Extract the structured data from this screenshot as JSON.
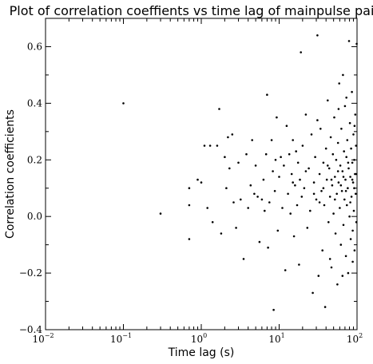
{
  "chart_data": {
    "type": "scatter",
    "title": "Plot of correlation coeffients vs time lag of mainpulse pairs.",
    "xlabel": "Time lag (s)",
    "ylabel": "Correlation coefficients",
    "xscale": "log",
    "xlim": [
      0.01,
      100
    ],
    "ylim": [
      -0.4,
      0.7
    ],
    "grid": false,
    "marker_color": "#000000",
    "x_ticks": [
      {
        "value": 0.01,
        "base": "10",
        "exp": "−2"
      },
      {
        "value": 0.1,
        "base": "10",
        "exp": "−1"
      },
      {
        "value": 1,
        "base": "10",
        "exp": "0"
      },
      {
        "value": 10,
        "base": "10",
        "exp": "1"
      },
      {
        "value": 100,
        "base": "10",
        "exp": "2"
      }
    ],
    "y_ticks": [
      {
        "value": -0.4,
        "label": "−0.4"
      },
      {
        "value": -0.2,
        "label": "−0.2"
      },
      {
        "value": 0.0,
        "label": "0.0"
      },
      {
        "value": 0.2,
        "label": "0.2"
      },
      {
        "value": 0.4,
        "label": "0.4"
      },
      {
        "value": 0.6,
        "label": "0.6"
      }
    ],
    "points": [
      [
        0.1,
        0.4
      ],
      [
        0.3,
        0.01
      ],
      [
        0.7,
        0.1
      ],
      [
        0.7,
        0.04
      ],
      [
        0.7,
        -0.08
      ],
      [
        0.9,
        0.13
      ],
      [
        1.0,
        0.12
      ],
      [
        1.1,
        0.25
      ],
      [
        1.2,
        0.03
      ],
      [
        1.3,
        0.25
      ],
      [
        1.4,
        -0.02
      ],
      [
        1.6,
        0.25
      ],
      [
        1.7,
        0.38
      ],
      [
        1.8,
        -0.06
      ],
      [
        2.0,
        0.21
      ],
      [
        2.1,
        0.1
      ],
      [
        2.2,
        0.28
      ],
      [
        2.3,
        0.17
      ],
      [
        2.5,
        0.29
      ],
      [
        2.6,
        0.05
      ],
      [
        2.8,
        -0.04
      ],
      [
        3.0,
        0.19
      ],
      [
        3.2,
        0.06
      ],
      [
        3.5,
        -0.15
      ],
      [
        3.8,
        0.22
      ],
      [
        4.0,
        0.03
      ],
      [
        4.3,
        0.11
      ],
      [
        4.5,
        0.27
      ],
      [
        4.8,
        0.08
      ],
      [
        5.0,
        0.18
      ],
      [
        5.3,
        0.07
      ],
      [
        5.6,
        -0.09
      ],
      [
        6.0,
        0.06
      ],
      [
        6.3,
        0.13
      ],
      [
        6.5,
        0.02
      ],
      [
        6.8,
        0.22
      ],
      [
        7.0,
        0.43
      ],
      [
        7.2,
        -0.11
      ],
      [
        7.5,
        0.05
      ],
      [
        8.0,
        0.27
      ],
      [
        8.3,
        0.16
      ],
      [
        8.5,
        -0.33
      ],
      [
        8.8,
        0.09
      ],
      [
        9.0,
        0.2
      ],
      [
        9.3,
        0.35
      ],
      [
        9.6,
        -0.05
      ],
      [
        10.0,
        0.14
      ],
      [
        10.5,
        0.21
      ],
      [
        11.0,
        0.03
      ],
      [
        11.5,
        0.18
      ],
      [
        12.0,
        -0.19
      ],
      [
        12.5,
        0.32
      ],
      [
        13.0,
        0.08
      ],
      [
        13.5,
        0.22
      ],
      [
        14.0,
        0.01
      ],
      [
        14.5,
        0.15
      ],
      [
        15.0,
        0.27
      ],
      [
        15.5,
        -0.07
      ],
      [
        16.0,
        0.11
      ],
      [
        16.5,
        0.23
      ],
      [
        17.0,
        0.04
      ],
      [
        17.5,
        0.19
      ],
      [
        18.0,
        -0.17
      ],
      [
        18.5,
        0.13
      ],
      [
        19.0,
        0.58
      ],
      [
        19.5,
        0.07
      ],
      [
        20.0,
        0.25
      ],
      [
        21.0,
        0.1
      ],
      [
        22.0,
        0.36
      ],
      [
        23.0,
        -0.04
      ],
      [
        24.0,
        0.17
      ],
      [
        25.0,
        0.02
      ],
      [
        26.0,
        0.29
      ],
      [
        27.0,
        -0.27
      ],
      [
        28.0,
        0.12
      ],
      [
        29.0,
        0.21
      ],
      [
        30.0,
        0.06
      ],
      [
        31.0,
        0.64
      ],
      [
        32.0,
        -0.21
      ],
      [
        33.0,
        0.15
      ],
      [
        34.0,
        0.31
      ],
      [
        35.0,
        0.09
      ],
      [
        36.0,
        -0.12
      ],
      [
        37.0,
        0.19
      ],
      [
        38.0,
        0.04
      ],
      [
        39.0,
        -0.32
      ],
      [
        40.0,
        0.24
      ],
      [
        41.0,
        0.13
      ],
      [
        42.0,
        0.41
      ],
      [
        43.0,
        -0.02
      ],
      [
        44.0,
        0.17
      ],
      [
        45.0,
        0.07
      ],
      [
        46.0,
        0.28
      ],
      [
        47.0,
        -0.18
      ],
      [
        48.0,
        0.11
      ],
      [
        49.0,
        0.22
      ],
      [
        50.0,
        0.01
      ],
      [
        51.0,
        0.35
      ],
      [
        52.0,
        0.14
      ],
      [
        53.0,
        -0.06
      ],
      [
        54.0,
        0.2
      ],
      [
        55.0,
        0.08
      ],
      [
        56.0,
        -0.24
      ],
      [
        57.0,
        0.26
      ],
      [
        58.0,
        0.12
      ],
      [
        59.0,
        0.47
      ],
      [
        60.0,
        0.03
      ],
      [
        61.0,
        0.18
      ],
      [
        62.0,
        -0.1
      ],
      [
        63.0,
        0.31
      ],
      [
        64.0,
        0.09
      ],
      [
        65.0,
        0.16
      ],
      [
        66.0,
        0.5
      ],
      [
        67.0,
        -0.03
      ],
      [
        68.0,
        0.23
      ],
      [
        69.0,
        0.06
      ],
      [
        70.0,
        0.39
      ],
      [
        71.0,
        0.13
      ],
      [
        72.0,
        -0.14
      ],
      [
        73.0,
        0.21
      ],
      [
        74.0,
        0.04
      ],
      [
        75.0,
        0.27
      ],
      [
        76.0,
        0.1
      ],
      [
        77.0,
        -0.2
      ],
      [
        78.0,
        0.17
      ],
      [
        79.0,
        0.62
      ],
      [
        80.0,
        0.0
      ],
      [
        81.0,
        0.33
      ],
      [
        82.0,
        0.14
      ],
      [
        83.0,
        -0.08
      ],
      [
        84.0,
        0.24
      ],
      [
        85.0,
        0.07
      ],
      [
        86.0,
        0.44
      ],
      [
        87.0,
        0.19
      ],
      [
        88.0,
        -0.05
      ],
      [
        89.0,
        0.12
      ],
      [
        90.0,
        0.29
      ],
      [
        91.0,
        0.02
      ],
      [
        92.0,
        0.2
      ],
      [
        93.0,
        -0.12
      ],
      [
        94.0,
        0.15
      ],
      [
        95.0,
        0.36
      ],
      [
        96.0,
        0.08
      ],
      [
        97.0,
        0.25
      ],
      [
        98.0,
        -0.02
      ],
      [
        99.0,
        0.61
      ],
      [
        15.0,
        0.12
      ],
      [
        22.0,
        0.16
      ],
      [
        28.0,
        0.08
      ],
      [
        33.0,
        0.05
      ],
      [
        37.0,
        0.1
      ],
      [
        42.0,
        0.18
      ],
      [
        47.0,
        0.13
      ],
      [
        52.0,
        0.06
      ],
      [
        57.0,
        0.16
      ],
      [
        62.0,
        0.11
      ],
      [
        67.0,
        0.14
      ],
      [
        72.0,
        0.09
      ],
      [
        77.0,
        0.19
      ],
      [
        82.0,
        0.05
      ],
      [
        87.0,
        0.13
      ],
      [
        92.0,
        0.1
      ],
      [
        97.0,
        0.15
      ],
      [
        45.0,
        -0.15
      ],
      [
        65.0,
        -0.21
      ],
      [
        88.0,
        -0.16
      ],
      [
        58.0,
        0.38
      ],
      [
        73.0,
        0.42
      ],
      [
        93.0,
        0.32
      ],
      [
        31.0,
        0.34
      ]
    ]
  }
}
